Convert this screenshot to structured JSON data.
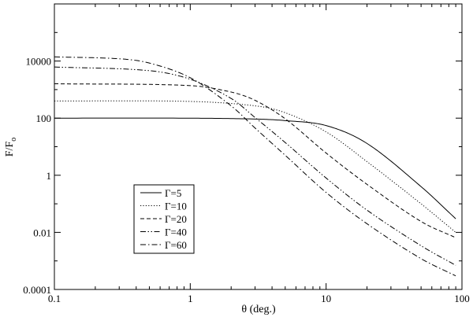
{
  "chart_data": {
    "type": "line",
    "title": "",
    "xlabel": "θ (deg.)",
    "ylabel": {
      "main": "F/F",
      "subscript": "o"
    },
    "xscale": "log",
    "yscale": "log",
    "xlim": [
      0.1,
      100
    ],
    "ylim": [
      0.0001,
      1000000
    ],
    "grid": false,
    "legend_position": "bottom-left",
    "x_ticks": [
      {
        "value": 0.1,
        "label": "0.1"
      },
      {
        "value": 1,
        "label": "1"
      },
      {
        "value": 10,
        "label": "10"
      },
      {
        "value": 100,
        "label": "100"
      }
    ],
    "y_ticks": [
      {
        "value": 0.0001,
        "label": "0.0001"
      },
      {
        "value": 0.01,
        "label": "0.01"
      },
      {
        "value": 1,
        "label": "1"
      },
      {
        "value": 100,
        "label": "100"
      },
      {
        "value": 10000,
        "label": "10000"
      }
    ],
    "series": [
      {
        "name": "Γ=5",
        "gamma": 5,
        "dash": "solid",
        "x": [
          0.1,
          1,
          3,
          5,
          10,
          20,
          50,
          90
        ],
        "y": [
          100,
          99.7,
          93,
          82,
          55,
          13,
          0.4,
          0.03
        ]
      },
      {
        "name": "Γ=10",
        "gamma": 10,
        "dash": "dotted",
        "x": [
          0.1,
          1,
          3,
          5,
          10,
          20,
          50,
          90
        ],
        "y": [
          400,
          385,
          270,
          155,
          33,
          3,
          0.1,
          0.01
        ]
      },
      {
        "name": "Γ=20",
        "gamma": 20,
        "dash": "dashed",
        "x": [
          0.1,
          1,
          2,
          3,
          5,
          10,
          20,
          50,
          90
        ],
        "y": [
          1600,
          1380,
          820,
          420,
          95,
          6,
          0.48,
          0.024,
          0.0065
        ]
      },
      {
        "name": "Γ=40",
        "gamma": 40,
        "dash": "dash-dot-dot",
        "x": [
          0.1,
          0.5,
          1,
          2,
          3,
          5,
          10,
          20,
          50,
          90
        ],
        "y": [
          6200,
          4600,
          2300,
          490,
          105,
          14,
          0.8,
          0.06,
          0.0034,
          0.0007
        ]
      },
      {
        "name": "Γ=60",
        "gamma": 60,
        "dash": "dash-dot",
        "x": [
          0.1,
          0.3,
          0.5,
          1,
          2,
          3,
          5,
          10,
          20,
          50,
          90
        ],
        "y": [
          14000,
          12000,
          8500,
          2600,
          270,
          45,
          5,
          0.25,
          0.02,
          0.0012,
          0.0003
        ]
      }
    ],
    "colors": {
      "line": "#000000",
      "frame": "#000000",
      "background": "#ffffff"
    }
  }
}
